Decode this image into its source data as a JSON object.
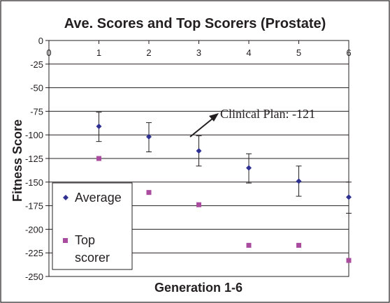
{
  "chart_data": {
    "type": "scatter",
    "title": "Ave. Scores and Top Scorers (Prostate)",
    "xlabel": "Generation 1-6",
    "ylabel": "Fitness Score",
    "x_ticks": [
      0,
      1,
      2,
      3,
      4,
      5,
      6
    ],
    "y_ticks": [
      0,
      -25,
      -50,
      -75,
      -100,
      -125,
      -150,
      -175,
      -200,
      -225,
      -250
    ],
    "xlim": [
      0,
      6
    ],
    "ylim": [
      -250,
      0
    ],
    "grid": "horizontal",
    "legend_position": "bottom-left",
    "series": [
      {
        "name": "Average",
        "marker": "diamond",
        "color": "#2e3192",
        "x": [
          1,
          2,
          3,
          4,
          5,
          6
        ],
        "y": [
          -91,
          -102,
          -117,
          -135,
          -149,
          -166
        ],
        "error_low": [
          -107,
          -118,
          -133,
          -151,
          -165,
          -183
        ],
        "error_high": [
          -76,
          -87,
          -101,
          -120,
          -133,
          -150
        ]
      },
      {
        "name": "Top scorer",
        "legend_lines": [
          "Top",
          "scorer"
        ],
        "marker": "square",
        "color": "#a94b9e",
        "x": [
          1,
          2,
          3,
          4,
          5,
          6
        ],
        "y": [
          -125,
          -161,
          -174,
          -217,
          -217,
          -233
        ]
      }
    ],
    "annotation": {
      "text": "Clinical Plan: -121"
    }
  }
}
